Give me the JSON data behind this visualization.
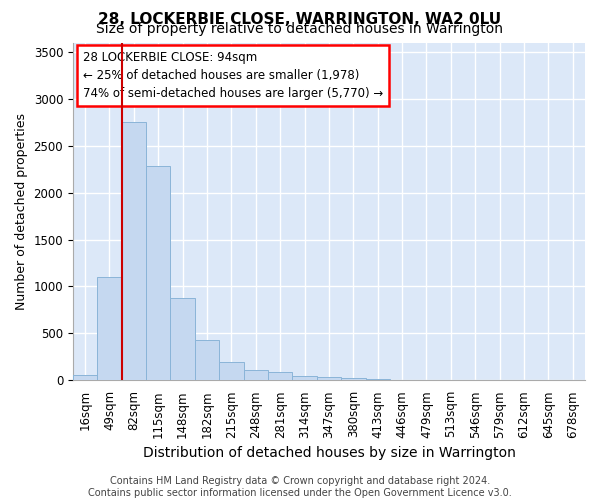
{
  "title": "28, LOCKERBIE CLOSE, WARRINGTON, WA2 0LU",
  "subtitle": "Size of property relative to detached houses in Warrington",
  "xlabel": "Distribution of detached houses by size in Warrington",
  "ylabel": "Number of detached properties",
  "footer_line1": "Contains HM Land Registry data © Crown copyright and database right 2024.",
  "footer_line2": "Contains public sector information licensed under the Open Government Licence v3.0.",
  "categories": [
    "16sqm",
    "49sqm",
    "82sqm",
    "115sqm",
    "148sqm",
    "182sqm",
    "215sqm",
    "248sqm",
    "281sqm",
    "314sqm",
    "347sqm",
    "380sqm",
    "413sqm",
    "446sqm",
    "479sqm",
    "513sqm",
    "546sqm",
    "579sqm",
    "612sqm",
    "645sqm",
    "678sqm"
  ],
  "values": [
    55,
    1100,
    2750,
    2280,
    880,
    430,
    200,
    110,
    85,
    50,
    35,
    20,
    15,
    8,
    5,
    3,
    2,
    2,
    1,
    1,
    1
  ],
  "bar_color": "#c5d8f0",
  "bar_edge_color": "#8ab4d8",
  "plot_bg_color": "#dce8f8",
  "ylim": [
    0,
    3600
  ],
  "yticks": [
    0,
    500,
    1000,
    1500,
    2000,
    2500,
    3000,
    3500
  ],
  "vline_index": 1.5,
  "vline_color": "#cc0000",
  "annotation_text": "28 LOCKERBIE CLOSE: 94sqm\n← 25% of detached houses are smaller (1,978)\n74% of semi-detached houses are larger (5,770) →",
  "grid_color": "#ffffff",
  "title_fontsize": 11,
  "subtitle_fontsize": 10,
  "ylabel_fontsize": 9,
  "xlabel_fontsize": 10,
  "tick_fontsize": 8.5,
  "annotation_fontsize": 8.5,
  "footer_fontsize": 7
}
